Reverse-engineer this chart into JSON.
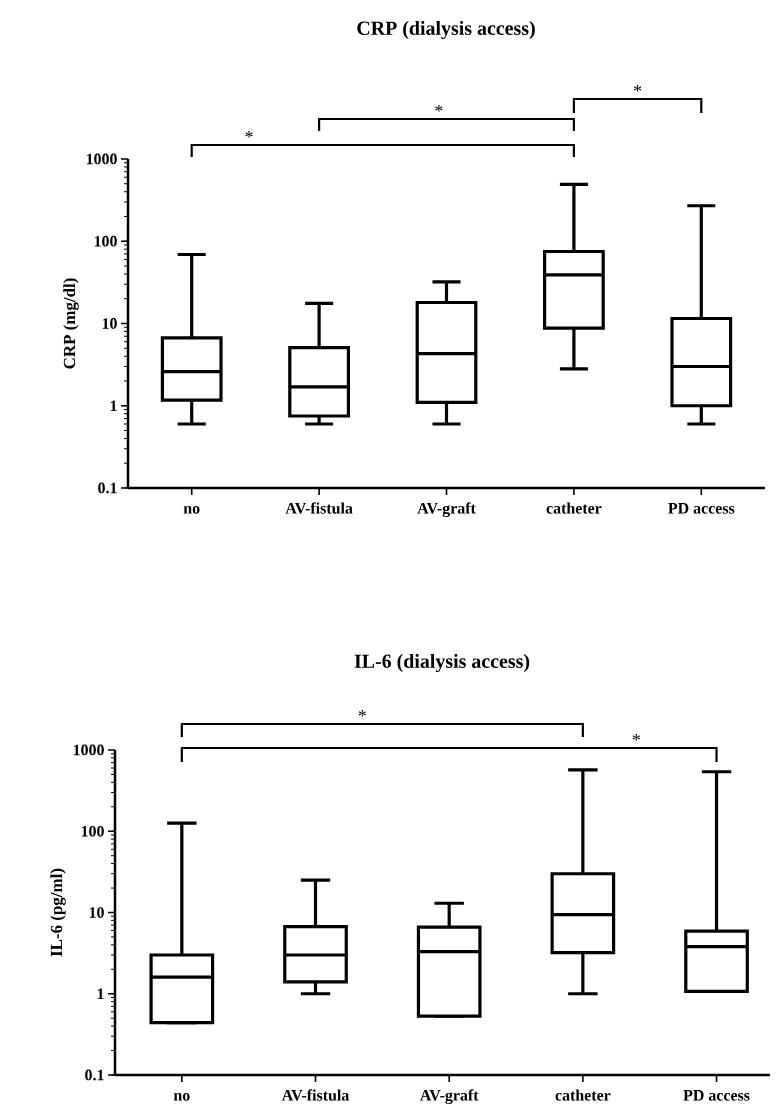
{
  "chart_data": [
    {
      "type": "box",
      "title": "CRP (dialysis access)",
      "ylabel": "CRP (mg/dl)",
      "categories": [
        "no",
        "AV-fistula",
        "AV-graft",
        "catheter",
        "PD access"
      ],
      "boxes": [
        {
          "low": 0.6,
          "q1": 1.17,
          "median": 2.6,
          "q3": 6.7,
          "high": 69
        },
        {
          "low": 0.6,
          "q1": 0.75,
          "median": 1.7,
          "q3": 5.1,
          "high": 17.6
        },
        {
          "low": 0.6,
          "q1": 1.1,
          "median": 4.3,
          "q3": 18,
          "high": 32
        },
        {
          "low": 2.8,
          "q1": 8.8,
          "median": 39,
          "q3": 75,
          "high": 490
        },
        {
          "low": 0.6,
          "q1": 1.0,
          "median": 3.0,
          "q3": 11.5,
          "high": 270
        }
      ],
      "ylim": [
        0.1,
        1000
      ],
      "yticks": [
        0.1,
        1,
        10,
        100,
        1000
      ],
      "log": "y",
      "annotations": [
        "*",
        "*",
        "*"
      ]
    },
    {
      "type": "box",
      "title": "IL-6 (dialysis access)",
      "ylabel": "IL-6 (pg/ml)",
      "categories": [
        "no",
        "AV-fistula",
        "AV-graft",
        "catheter",
        "PD access"
      ],
      "boxes": [
        {
          "low": 0.44,
          "q1": 0.44,
          "median": 1.6,
          "q3": 3.0,
          "high": 126
        },
        {
          "low": 1.0,
          "q1": 1.4,
          "median": 3.0,
          "q3": 6.7,
          "high": 25
        },
        {
          "low": 0.53,
          "q1": 0.53,
          "median": 3.3,
          "q3": 6.6,
          "high": 13
        },
        {
          "low": 1.0,
          "q1": 3.2,
          "median": 9.4,
          "q3": 30,
          "high": 570
        },
        {
          "low": 1.07,
          "q1": 1.07,
          "median": 3.8,
          "q3": 5.9,
          "high": 540
        }
      ],
      "ylim": [
        0.1,
        1000
      ],
      "yticks": [
        0.1,
        1,
        10,
        100,
        1000
      ],
      "log": "y",
      "annotations": [
        "*",
        "*"
      ]
    }
  ]
}
